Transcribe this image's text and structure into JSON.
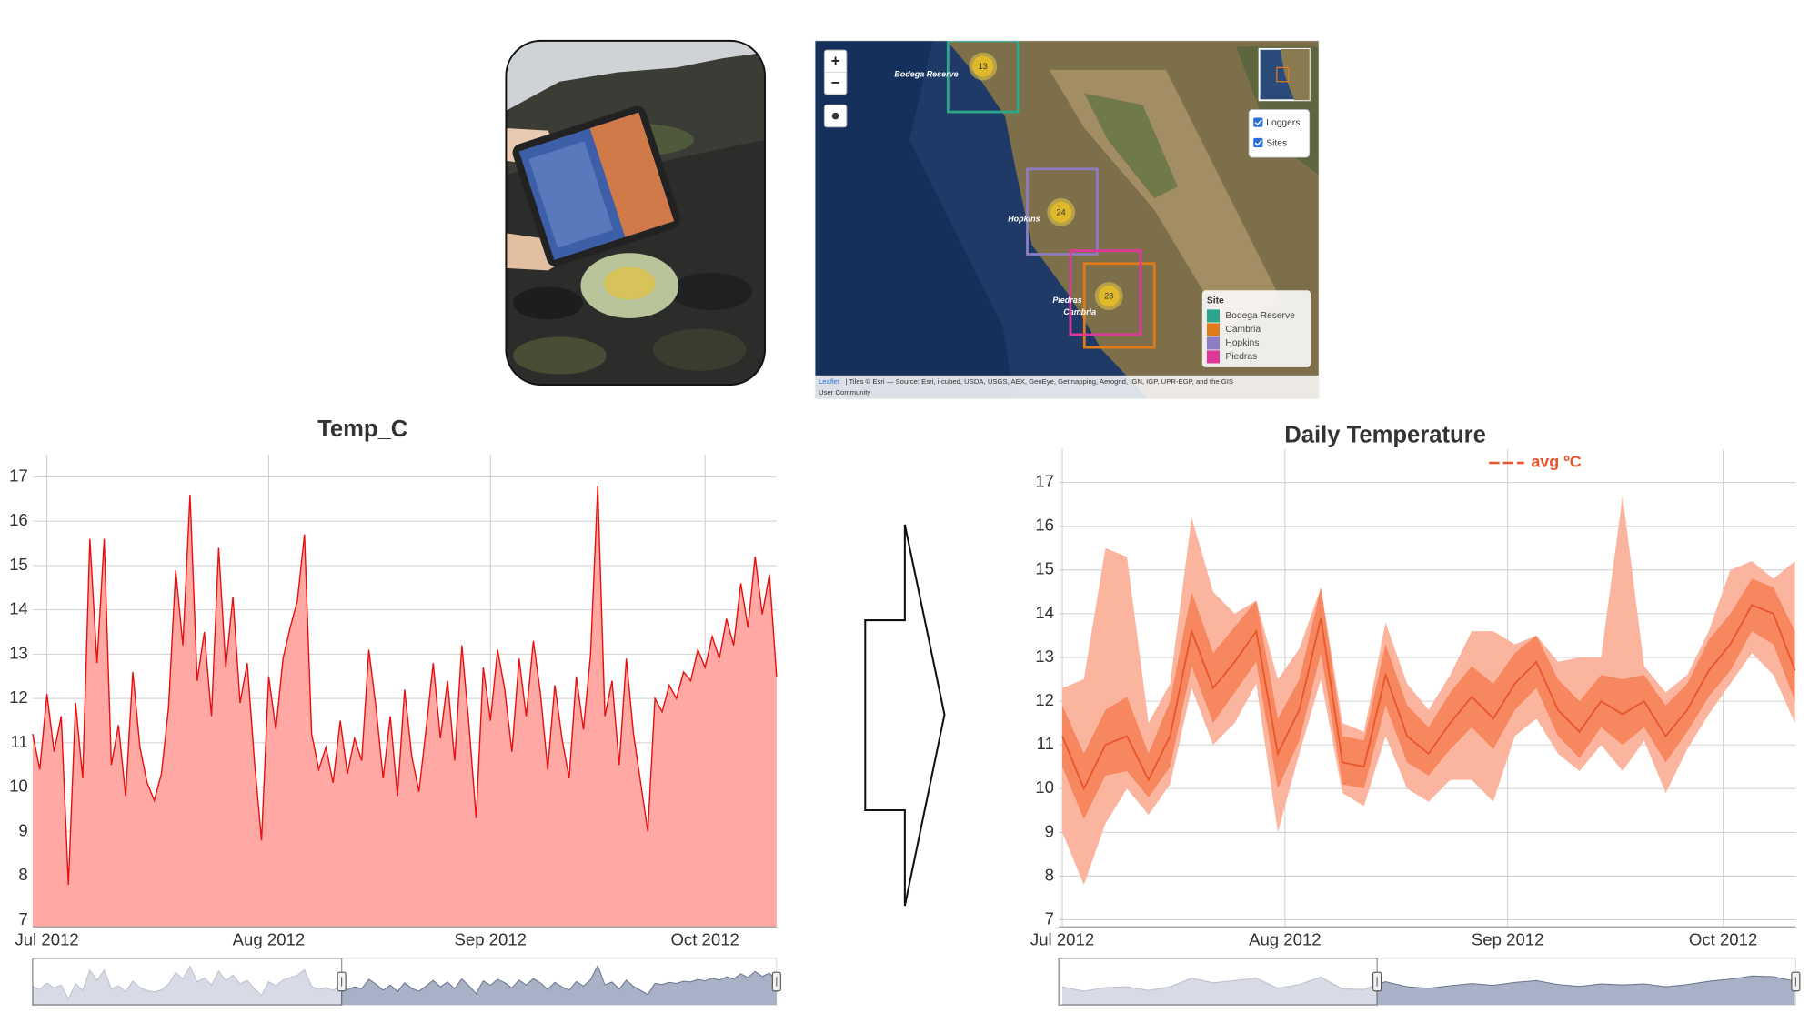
{
  "chart_data": [
    {
      "type": "area",
      "title": "Temp_C",
      "color": "#e8100e",
      "fill": "#ffa8a4",
      "grid": true,
      "xlim": [
        -2,
        102
      ],
      "ylim": [
        6.85,
        17.5
      ],
      "xticks": [
        {
          "value": 0,
          "label": "Jul 2012"
        },
        {
          "value": 31,
          "label": "Aug 2012"
        },
        {
          "value": 62,
          "label": "Sep 2012"
        },
        {
          "value": 92,
          "label": "Oct 2012"
        }
      ],
      "yticks": [
        7,
        8,
        9,
        10,
        11,
        12,
        13,
        14,
        15,
        16,
        17
      ],
      "x": [
        -2,
        -1,
        0,
        1,
        2,
        3,
        4,
        5,
        6,
        7,
        8,
        9,
        10,
        11,
        12,
        13,
        14,
        15,
        16,
        17,
        18,
        19,
        20,
        21,
        22,
        23,
        24,
        25,
        26,
        27,
        28,
        29,
        30,
        31,
        32,
        33,
        34,
        35,
        36,
        37,
        38,
        39,
        40,
        41,
        42,
        43,
        44,
        45,
        46,
        47,
        48,
        49,
        50,
        51,
        52,
        53,
        54,
        55,
        56,
        57,
        58,
        59,
        60,
        61,
        62,
        63,
        64,
        65,
        66,
        67,
        68,
        69,
        70,
        71,
        72,
        73,
        74,
        75,
        76,
        77,
        78,
        79,
        80,
        81,
        82,
        83,
        84,
        85,
        86,
        87,
        88,
        89,
        90,
        91,
        92,
        93,
        94,
        95,
        96,
        97,
        98,
        99,
        100,
        101,
        102
      ],
      "values": [
        11.2,
        10.4,
        12.1,
        10.8,
        11.6,
        7.8,
        11.9,
        10.2,
        15.6,
        12.8,
        15.6,
        10.5,
        11.4,
        9.8,
        12.6,
        10.9,
        10.1,
        9.7,
        10.3,
        11.8,
        14.9,
        13.2,
        16.6,
        12.4,
        13.5,
        11.6,
        15.4,
        12.7,
        14.3,
        11.9,
        12.8,
        10.6,
        8.8,
        12.5,
        11.3,
        12.9,
        13.6,
        14.2,
        15.7,
        11.2,
        10.4,
        10.9,
        10.1,
        11.5,
        10.3,
        11.1,
        10.6,
        13.1,
        11.8,
        10.2,
        11.6,
        9.8,
        12.2,
        10.7,
        9.9,
        11.3,
        12.8,
        11.1,
        12.4,
        10.6,
        13.2,
        11.4,
        9.3,
        12.7,
        11.5,
        13.1,
        12.2,
        10.8,
        12.9,
        11.6,
        13.3,
        12.1,
        10.4,
        12.3,
        11.1,
        10.2,
        12.5,
        11.3,
        13.0,
        16.8,
        11.6,
        12.4,
        10.5,
        12.9,
        11.2,
        10.1,
        9.0,
        12.0,
        11.7,
        12.3,
        12.0,
        12.6,
        12.4,
        13.1,
        12.7,
        13.4,
        12.9,
        13.8,
        13.2,
        14.6,
        13.6,
        15.2,
        13.9,
        14.8,
        12.5
      ]
    },
    {
      "type": "line",
      "title": "Daily Temperature",
      "grid": true,
      "xlim": [
        -0.5,
        102.1
      ],
      "ylim": [
        6.84,
        17.77
      ],
      "xticks": [
        {
          "value": 0,
          "label": "Jul 2012"
        },
        {
          "value": 31,
          "label": "Aug 2012"
        },
        {
          "value": 62,
          "label": "Sep 2012"
        },
        {
          "value": 92,
          "label": "Oct 2012"
        }
      ],
      "yticks": [
        7,
        8,
        9,
        10,
        11,
        12,
        13,
        14,
        15,
        16,
        17
      ],
      "x": [
        0,
        3,
        6,
        9,
        12,
        15,
        18,
        21,
        24,
        27,
        30,
        33,
        36,
        39,
        42,
        45,
        48,
        51,
        54,
        57,
        60,
        63,
        66,
        69,
        72,
        75,
        78,
        81,
        84,
        87,
        90,
        93,
        96,
        99,
        102
      ],
      "bands": [
        {
          "color": "#fbb49e",
          "low": [
            9.0,
            7.8,
            9.2,
            10.0,
            9.4,
            10.1,
            12.3,
            11.0,
            11.5,
            12.4,
            9.0,
            10.8,
            12.5,
            9.9,
            9.6,
            11.2,
            10.0,
            9.7,
            10.2,
            10.2,
            9.7,
            11.2,
            11.6,
            10.8,
            10.4,
            11.0,
            10.4,
            11.1,
            9.9,
            10.9,
            11.7,
            12.4,
            13.1,
            12.6,
            11.5
          ],
          "high": [
            12.3,
            12.5,
            15.5,
            15.3,
            11.5,
            12.4,
            16.2,
            14.5,
            14.0,
            14.3,
            12.5,
            13.2,
            14.6,
            11.5,
            11.3,
            13.8,
            12.4,
            11.8,
            12.6,
            13.6,
            13.6,
            13.3,
            13.5,
            12.9,
            13.0,
            13.0,
            16.7,
            12.8,
            12.2,
            12.6,
            13.6,
            15.0,
            15.2,
            14.8,
            15.2
          ]
        },
        {
          "color": "#f7875f",
          "low": [
            10.5,
            9.3,
            10.3,
            10.4,
            9.8,
            10.5,
            12.8,
            11.5,
            12.2,
            12.9,
            10.0,
            11.1,
            13.1,
            10.1,
            10.0,
            11.9,
            10.6,
            10.3,
            10.9,
            11.4,
            10.9,
            11.8,
            12.3,
            11.2,
            10.7,
            11.4,
            11.0,
            11.4,
            10.6,
            11.3,
            12.1,
            12.7,
            13.6,
            13.3,
            12.0
          ],
          "high": [
            11.9,
            10.8,
            11.8,
            12.1,
            10.8,
            12.0,
            14.5,
            13.1,
            13.7,
            14.3,
            11.6,
            12.5,
            14.6,
            11.2,
            11.1,
            13.3,
            11.9,
            11.4,
            12.2,
            12.8,
            12.4,
            13.1,
            13.5,
            12.5,
            12.0,
            12.6,
            12.5,
            12.6,
            11.9,
            12.4,
            13.4,
            14.0,
            14.8,
            14.6,
            13.6
          ]
        }
      ],
      "series": [
        {
          "name": "avg ºC",
          "color": "#e8552a",
          "values": [
            11.2,
            10.0,
            11.0,
            11.2,
            10.2,
            11.2,
            13.6,
            12.3,
            12.9,
            13.6,
            10.8,
            11.8,
            13.9,
            10.6,
            10.5,
            12.6,
            11.2,
            10.8,
            11.5,
            12.1,
            11.6,
            12.4,
            12.9,
            11.8,
            11.3,
            12.0,
            11.7,
            12.0,
            11.2,
            11.8,
            12.7,
            13.3,
            14.2,
            14.0,
            12.7
          ]
        }
      ]
    }
  ],
  "map": {
    "zoom_in": "+",
    "zoom_out": "−",
    "layers": [
      "Loggers",
      "Sites"
    ],
    "legend_title": "Site",
    "sites": [
      {
        "name": "Bodega Reserve",
        "color": "#2ca58d"
      },
      {
        "name": "Cambria",
        "color": "#e07b1a"
      },
      {
        "name": "Hopkins",
        "color": "#8e7cc3"
      },
      {
        "name": "Piedras",
        "color": "#e0379a"
      }
    ],
    "clusters": [
      13,
      24,
      28
    ],
    "attribution_link": "Leaflet",
    "attribution": [
      "| Tiles © Esri — Source: Esri, i-cubed, USDA, USGS, AEX, GeoEye, Getmapping, Aerogrid, IGN, IGP, UPR-EGP, and the GIS",
      "User Community"
    ]
  }
}
